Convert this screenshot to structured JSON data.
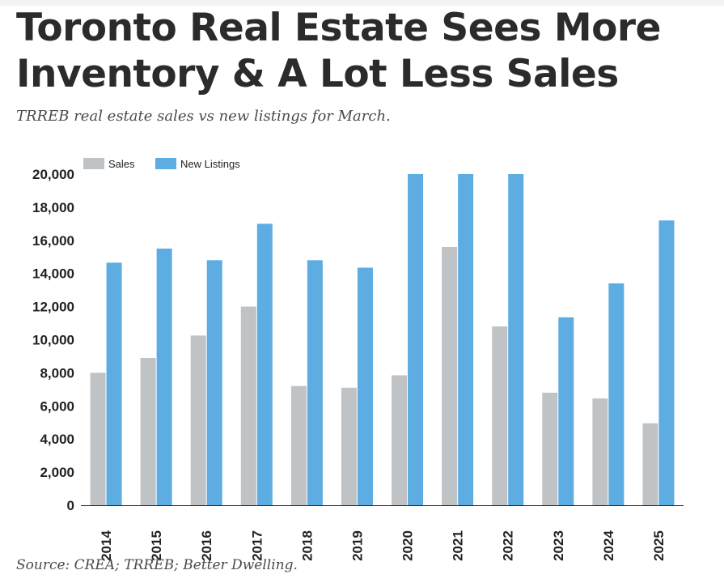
{
  "header": {
    "title": "Toronto Real Estate Sees More Inventory & A Lot Less Sales",
    "subtitle": "TRREB real estate sales vs new listings for March."
  },
  "footer": {
    "source": "Source: CREA; TRREB; Better Dwelling."
  },
  "chart_data": {
    "type": "bar",
    "title": "",
    "xlabel": "",
    "ylabel": "",
    "categories": [
      "2014",
      "2015",
      "2016",
      "2017",
      "2018",
      "2019",
      "2020",
      "2021",
      "2022",
      "2023",
      "2024",
      "2025"
    ],
    "series": [
      {
        "name": "Sales",
        "color": "#c0c3c6",
        "values": [
          8000,
          8900,
          10250,
          12000,
          7200,
          7100,
          7850,
          15600,
          10800,
          6800,
          6450,
          4950
        ]
      },
      {
        "name": "New Listings",
        "color": "#5dade2",
        "values": [
          14650,
          15500,
          14800,
          17000,
          14800,
          14350,
          20000,
          20000,
          20000,
          11350,
          13400,
          17200
        ]
      }
    ],
    "ylim": [
      0,
      20000
    ],
    "yticks": [
      0,
      2000,
      4000,
      6000,
      8000,
      10000,
      12000,
      14000,
      16000,
      18000,
      20000
    ],
    "ytick_labels": [
      "0",
      "2,000",
      "4,000",
      "6,000",
      "8,000",
      "10,000",
      "12,000",
      "14,000",
      "16,000",
      "18,000",
      "20,000"
    ],
    "grid": false,
    "legend_position": "top-left",
    "x_tick_rotation": "vertical"
  }
}
